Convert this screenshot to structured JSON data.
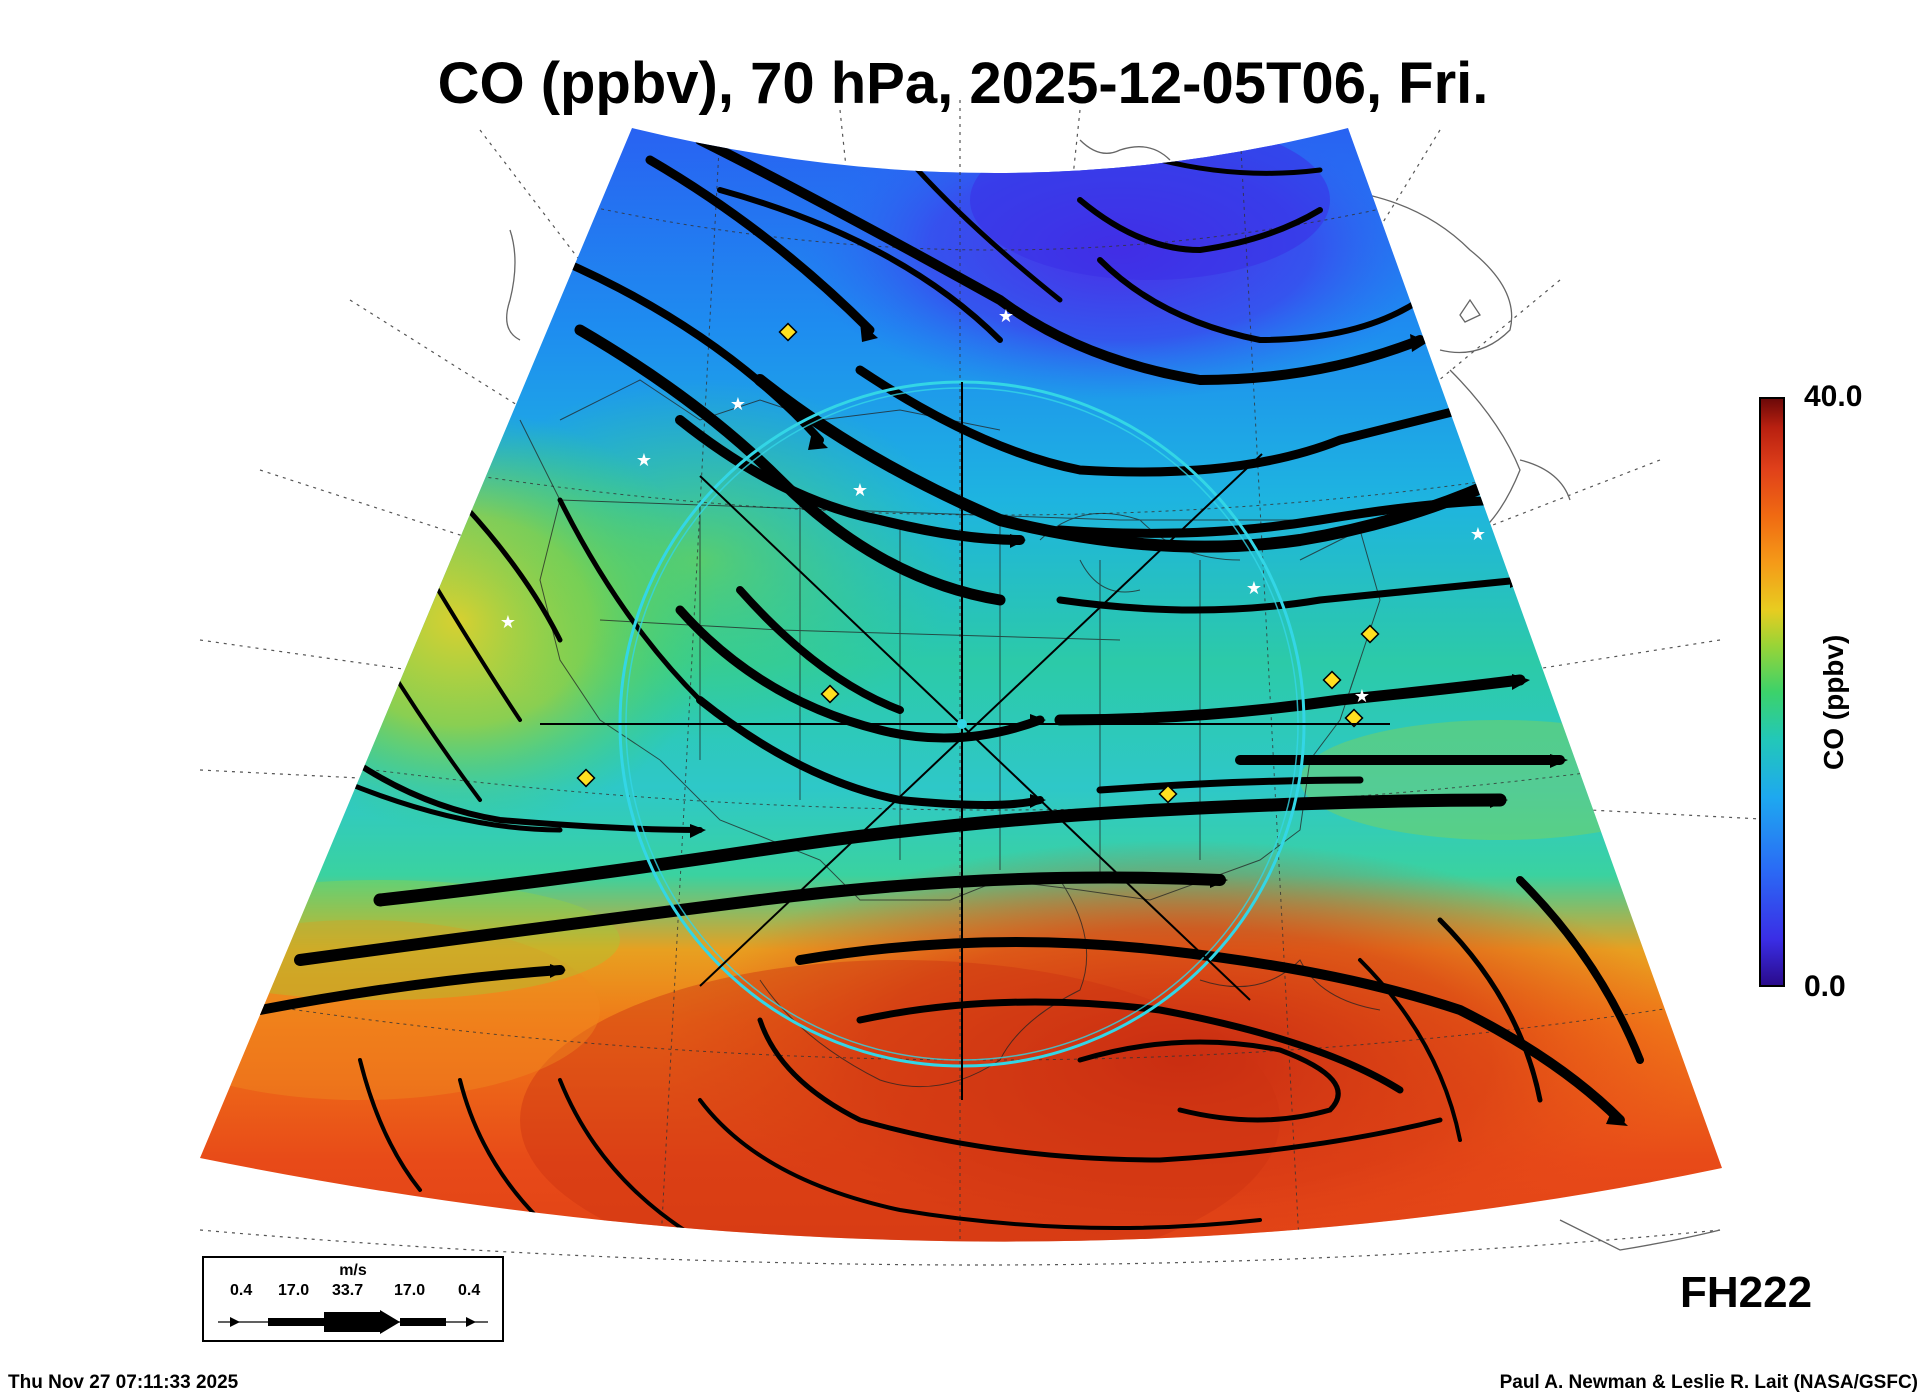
{
  "title": "CO (ppbv), 70 hPa, 2025-12-05T06, Fri.",
  "colorbar": {
    "max_label": "40.0",
    "min_label": "0.0",
    "title": "CO (ppbv)",
    "range": [
      0.0,
      40.0
    ],
    "colors": [
      "#2a0a8a",
      "#3a2ee6",
      "#2a6cf5",
      "#1ea8f0",
      "#22c8b8",
      "#3cd26a",
      "#9ad436",
      "#e8cc20",
      "#f59a18",
      "#f06a12",
      "#e0401a",
      "#b82010",
      "#6a0808"
    ]
  },
  "forecast_hour": "FH222",
  "wind_legend": {
    "unit": "m/s",
    "values": [
      "0.4",
      "17.0",
      "33.7",
      "17.0",
      "0.4"
    ]
  },
  "footer": {
    "timestamp": "Thu Nov 27 07:11:33 2025",
    "credit": "Paul A. Newman & Leslie R. Lait (NASA/GSFC)"
  },
  "markers": {
    "diamond_color": "#ffe020",
    "star_color": "#ffffff",
    "ring_color": "#33d6e6"
  }
}
